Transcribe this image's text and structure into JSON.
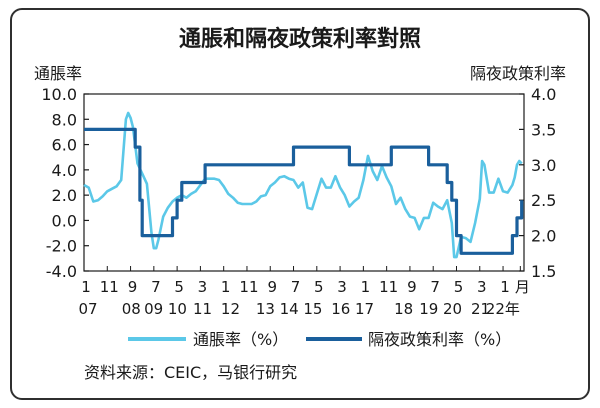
{
  "chart_data": {
    "type": "line",
    "title": "通脹和隔夜政策利率對照",
    "ylabel_left": "通脹率",
    "ylabel_right": "隔夜政策利率",
    "ylim_left": [
      -4.0,
      10.0
    ],
    "ylim_right": [
      1.5,
      4.0
    ],
    "left_ticks": [
      "10.0",
      "8.0",
      "6.0",
      "4.0",
      "2.0",
      "0.0",
      "-2.0",
      "-4.0"
    ],
    "right_ticks": [
      "4.0",
      "3.5",
      "3.0",
      "2.5",
      "2.0",
      "1.5"
    ],
    "x_month_labels": [
      "1",
      "11",
      "9",
      "7",
      "5",
      "3",
      "1",
      "11",
      "9",
      "7",
      "5",
      "3",
      "1",
      "11",
      "9",
      "7",
      "5",
      "3",
      "1",
      "月"
    ],
    "x_year_labels": [
      "07",
      "08",
      "09",
      "10",
      "11",
      "12",
      "13",
      "14",
      "15",
      "16",
      "17",
      "18",
      "19",
      "20",
      "21",
      "22年"
    ],
    "legend_position": "bottom",
    "series": [
      {
        "name": "通脹率（%）",
        "color": "#5bc8e8",
        "axis": "left",
        "points": [
          [
            "2007-01",
            2.8
          ],
          [
            "2007-03",
            2.6
          ],
          [
            "2007-05",
            1.5
          ],
          [
            "2007-07",
            1.6
          ],
          [
            "2007-09",
            1.9
          ],
          [
            "2007-11",
            2.3
          ],
          [
            "2008-01",
            2.5
          ],
          [
            "2008-03",
            2.7
          ],
          [
            "2008-05",
            3.2
          ],
          [
            "2008-07",
            8.0
          ],
          [
            "2008-08",
            8.5
          ],
          [
            "2008-09",
            8.1
          ],
          [
            "2008-10",
            7.4
          ],
          [
            "2008-12",
            4.5
          ],
          [
            "2009-02",
            3.7
          ],
          [
            "2009-04",
            2.9
          ],
          [
            "2009-06",
            -1.0
          ],
          [
            "2009-07",
            -2.2
          ],
          [
            "2009-08",
            -2.2
          ],
          [
            "2009-09",
            -1.5
          ],
          [
            "2009-11",
            0.3
          ],
          [
            "2010-01",
            1.0
          ],
          [
            "2010-03",
            1.5
          ],
          [
            "2010-05",
            1.8
          ],
          [
            "2010-07",
            2.0
          ],
          [
            "2010-09",
            1.8
          ],
          [
            "2010-11",
            2.1
          ],
          [
            "2011-01",
            2.3
          ],
          [
            "2011-03",
            2.8
          ],
          [
            "2011-05",
            3.3
          ],
          [
            "2011-07",
            3.3
          ],
          [
            "2011-09",
            3.3
          ],
          [
            "2011-11",
            3.2
          ],
          [
            "2012-01",
            2.7
          ],
          [
            "2012-03",
            2.1
          ],
          [
            "2012-05",
            1.8
          ],
          [
            "2012-07",
            1.4
          ],
          [
            "2012-09",
            1.3
          ],
          [
            "2012-11",
            1.3
          ],
          [
            "2013-01",
            1.3
          ],
          [
            "2013-03",
            1.5
          ],
          [
            "2013-05",
            1.9
          ],
          [
            "2013-07",
            2.0
          ],
          [
            "2013-09",
            2.7
          ],
          [
            "2013-11",
            3.0
          ],
          [
            "2014-01",
            3.4
          ],
          [
            "2014-03",
            3.5
          ],
          [
            "2014-05",
            3.3
          ],
          [
            "2014-07",
            3.2
          ],
          [
            "2014-09",
            2.6
          ],
          [
            "2014-11",
            3.0
          ],
          [
            "2015-01",
            1.0
          ],
          [
            "2015-03",
            0.9
          ],
          [
            "2015-05",
            2.1
          ],
          [
            "2015-07",
            3.3
          ],
          [
            "2015-09",
            2.6
          ],
          [
            "2015-11",
            2.6
          ],
          [
            "2016-01",
            3.5
          ],
          [
            "2016-03",
            2.6
          ],
          [
            "2016-05",
            2.0
          ],
          [
            "2016-07",
            1.1
          ],
          [
            "2016-09",
            1.5
          ],
          [
            "2016-11",
            1.8
          ],
          [
            "2017-01",
            3.2
          ],
          [
            "2017-03",
            5.1
          ],
          [
            "2017-05",
            3.9
          ],
          [
            "2017-07",
            3.2
          ],
          [
            "2017-09",
            4.3
          ],
          [
            "2017-11",
            3.4
          ],
          [
            "2018-01",
            2.7
          ],
          [
            "2018-03",
            1.3
          ],
          [
            "2018-05",
            1.8
          ],
          [
            "2018-07",
            0.9
          ],
          [
            "2018-09",
            0.3
          ],
          [
            "2018-11",
            0.2
          ],
          [
            "2019-01",
            -0.7
          ],
          [
            "2019-03",
            0.2
          ],
          [
            "2019-05",
            0.2
          ],
          [
            "2019-07",
            1.4
          ],
          [
            "2019-09",
            1.1
          ],
          [
            "2019-11",
            0.9
          ],
          [
            "2020-01",
            1.6
          ],
          [
            "2020-03",
            -0.2
          ],
          [
            "2020-04",
            -2.9
          ],
          [
            "2020-05",
            -2.9
          ],
          [
            "2020-07",
            -1.3
          ],
          [
            "2020-09",
            -1.4
          ],
          [
            "2020-11",
            -1.7
          ],
          [
            "2021-01",
            -0.2
          ],
          [
            "2021-03",
            1.7
          ],
          [
            "2021-04",
            4.7
          ],
          [
            "2021-05",
            4.4
          ],
          [
            "2021-07",
            2.2
          ],
          [
            "2021-09",
            2.2
          ],
          [
            "2021-11",
            3.3
          ],
          [
            "2022-01",
            2.3
          ],
          [
            "2022-03",
            2.2
          ],
          [
            "2022-05",
            2.8
          ],
          [
            "2022-06",
            3.4
          ],
          [
            "2022-07",
            4.4
          ],
          [
            "2022-08",
            4.7
          ],
          [
            "2022-09",
            4.5
          ]
        ]
      },
      {
        "name": "隔夜政策利率（%）",
        "color": "#1a5f9c",
        "axis": "right",
        "points": [
          [
            "2007-01",
            3.5
          ],
          [
            "2008-11",
            3.5
          ],
          [
            "2008-11",
            3.25
          ],
          [
            "2009-01",
            3.25
          ],
          [
            "2009-01",
            2.5
          ],
          [
            "2009-02",
            2.5
          ],
          [
            "2009-02",
            2.0
          ],
          [
            "2010-03",
            2.0
          ],
          [
            "2010-03",
            2.25
          ],
          [
            "2010-05",
            2.25
          ],
          [
            "2010-05",
            2.5
          ],
          [
            "2010-07",
            2.5
          ],
          [
            "2010-07",
            2.75
          ],
          [
            "2011-05",
            2.75
          ],
          [
            "2011-05",
            3.0
          ],
          [
            "2014-07",
            3.0
          ],
          [
            "2014-07",
            3.25
          ],
          [
            "2016-07",
            3.25
          ],
          [
            "2016-07",
            3.0
          ],
          [
            "2018-01",
            3.0
          ],
          [
            "2018-01",
            3.25
          ],
          [
            "2019-05",
            3.25
          ],
          [
            "2019-05",
            3.0
          ],
          [
            "2020-01",
            3.0
          ],
          [
            "2020-01",
            2.75
          ],
          [
            "2020-03",
            2.75
          ],
          [
            "2020-03",
            2.5
          ],
          [
            "2020-05",
            2.5
          ],
          [
            "2020-05",
            2.0
          ],
          [
            "2020-07",
            2.0
          ],
          [
            "2020-07",
            1.75
          ],
          [
            "2022-05",
            1.75
          ],
          [
            "2022-05",
            2.0
          ],
          [
            "2022-07",
            2.0
          ],
          [
            "2022-07",
            2.25
          ],
          [
            "2022-09",
            2.25
          ],
          [
            "2022-09",
            2.5
          ]
        ]
      }
    ]
  },
  "source": "资料来源：CEIC，马银行研究"
}
